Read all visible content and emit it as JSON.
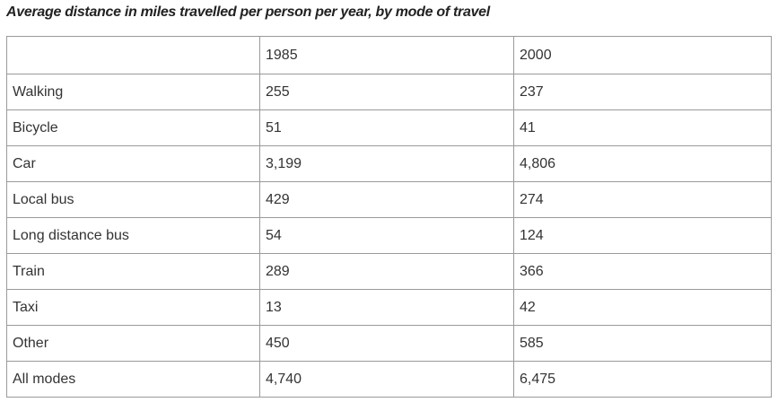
{
  "title": "Average distance in miles travelled per person per year, by mode of travel",
  "table": {
    "header": [
      "1985",
      "2000"
    ],
    "rows": [
      [
        "Walking",
        "255",
        "237"
      ],
      [
        "Bicycle",
        "51",
        "41"
      ],
      [
        "Car",
        "3,199",
        "4,806"
      ],
      [
        "Local bus",
        "429",
        "274"
      ],
      [
        "Long distance bus",
        "54",
        "124"
      ],
      [
        "Train",
        "289",
        "366"
      ],
      [
        "Taxi",
        "13",
        "42"
      ],
      [
        "Other",
        "450",
        "585"
      ],
      [
        "All modes",
        "4,740",
        "6,475"
      ]
    ]
  }
}
